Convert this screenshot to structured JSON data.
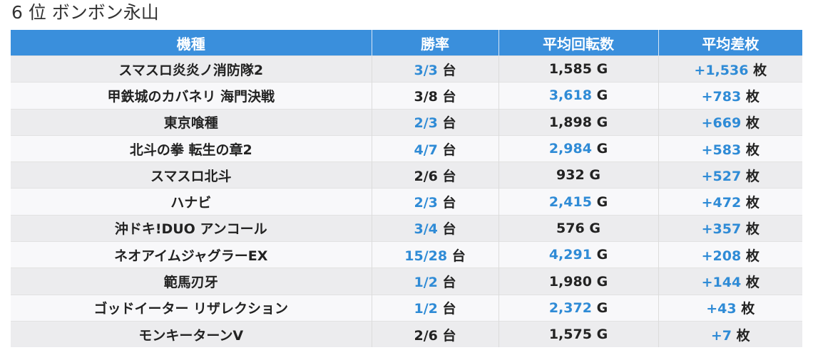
{
  "title": "6 位 ボンボン永山",
  "headers": [
    "機種",
    "勝率",
    "平均回転数",
    "平均差枚"
  ],
  "rows": [
    {
      "name": "スマスロ炎炎ノ消防隊2",
      "win": "3/3",
      "win_hl": true,
      "spins": "1,585",
      "spins_hl": false,
      "diff": "+1,536",
      "diff_hl": true
    },
    {
      "name": "甲鉄城のカバネリ 海門決戦",
      "win": "3/8",
      "win_hl": false,
      "spins": "3,618",
      "spins_hl": true,
      "diff": "+783",
      "diff_hl": true
    },
    {
      "name": "東京喰種",
      "win": "2/3",
      "win_hl": true,
      "spins": "1,898",
      "spins_hl": false,
      "diff": "+669",
      "diff_hl": true
    },
    {
      "name": "北斗の拳 転生の章2",
      "win": "4/7",
      "win_hl": true,
      "spins": "2,984",
      "spins_hl": true,
      "diff": "+583",
      "diff_hl": true
    },
    {
      "name": "スマスロ北斗",
      "win": "2/6",
      "win_hl": false,
      "spins": "932",
      "spins_hl": false,
      "diff": "+527",
      "diff_hl": true
    },
    {
      "name": "ハナビ",
      "win": "2/3",
      "win_hl": true,
      "spins": "2,415",
      "spins_hl": true,
      "diff": "+472",
      "diff_hl": true
    },
    {
      "name": "沖ドキ!DUO アンコール",
      "win": "3/4",
      "win_hl": true,
      "spins": "576",
      "spins_hl": false,
      "diff": "+357",
      "diff_hl": true
    },
    {
      "name": "ネオアイムジャグラーEX",
      "win": "15/28",
      "win_hl": true,
      "spins": "4,291",
      "spins_hl": true,
      "diff": "+208",
      "diff_hl": true
    },
    {
      "name": "範馬刃牙",
      "win": "1/2",
      "win_hl": true,
      "spins": "1,980",
      "spins_hl": false,
      "diff": "+144",
      "diff_hl": true
    },
    {
      "name": "ゴッドイーター リザレクション",
      "win": "1/2",
      "win_hl": true,
      "spins": "2,372",
      "spins_hl": true,
      "diff": "+43",
      "diff_hl": true
    },
    {
      "name": "モンキーターンV",
      "win": "2/6",
      "win_hl": false,
      "spins": "1,575",
      "spins_hl": false,
      "diff": "+7",
      "diff_hl": true
    }
  ],
  "units": {
    "win": "台",
    "spins": "G",
    "diff": "枚"
  },
  "colors": {
    "header_bg": "#3a8fdc",
    "highlight": "#2f8bd6",
    "row_odd": "#ececee",
    "row_even": "#f8f8fa"
  }
}
